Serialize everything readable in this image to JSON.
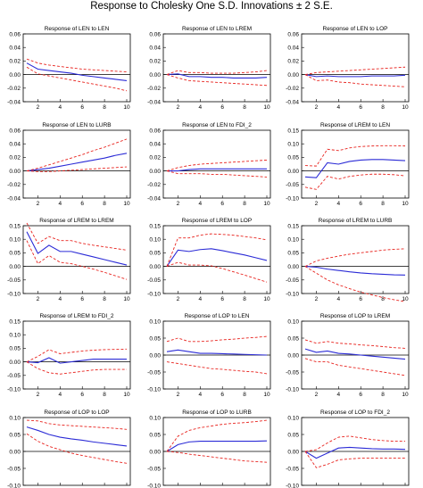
{
  "title": "Response to Cholesky One S.D. Innovations ± 2 S.E.",
  "colors": {
    "response": "#2b2bd6",
    "band": "#e8231e",
    "zero": "#000000",
    "frame": "#000000"
  },
  "chart_data": [
    {
      "type": "line",
      "title": "Response of LEN to LEN",
      "x": [
        1,
        2,
        3,
        4,
        5,
        6,
        7,
        8,
        9,
        10
      ],
      "ylim": [
        -0.04,
        0.06
      ],
      "yticks": [
        "0.06",
        "0.04",
        "0.02",
        "0.00",
        "-0.02",
        "-0.04"
      ],
      "xticks": [
        "2",
        "4",
        "6",
        "8",
        "10"
      ],
      "series": [
        {
          "role": "response",
          "values": [
            0.017,
            0.008,
            0.006,
            0.004,
            0.002,
            -0.001,
            -0.003,
            -0.005,
            -0.007,
            -0.009
          ]
        },
        {
          "role": "upper",
          "values": [
            0.023,
            0.017,
            0.014,
            0.012,
            0.01,
            0.008,
            0.007,
            0.006,
            0.005,
            0.004
          ]
        },
        {
          "role": "lower",
          "values": [
            0.011,
            0.001,
            -0.002,
            -0.005,
            -0.008,
            -0.011,
            -0.014,
            -0.017,
            -0.02,
            -0.024
          ]
        }
      ]
    },
    {
      "type": "line",
      "title": "Response of LEN to LREM",
      "x": [
        1,
        2,
        3,
        4,
        5,
        6,
        7,
        8,
        9,
        10
      ],
      "ylim": [
        -0.04,
        0.06
      ],
      "yticks": [
        "0.06",
        "0.04",
        "0.02",
        "0.00",
        "-0.02",
        "-0.04"
      ],
      "xticks": [
        "2",
        "4",
        "6",
        "8",
        "10"
      ],
      "series": [
        {
          "role": "response",
          "values": [
            0.0,
            0.001,
            -0.003,
            -0.003,
            -0.004,
            -0.004,
            -0.005,
            -0.005,
            -0.005,
            -0.004
          ]
        },
        {
          "role": "upper",
          "values": [
            0.0,
            0.006,
            0.003,
            0.003,
            0.002,
            0.002,
            0.002,
            0.003,
            0.004,
            0.006
          ]
        },
        {
          "role": "lower",
          "values": [
            0.0,
            -0.005,
            -0.009,
            -0.01,
            -0.011,
            -0.012,
            -0.013,
            -0.014,
            -0.015,
            -0.016
          ]
        }
      ]
    },
    {
      "type": "line",
      "title": "Response of LEN to LOP",
      "x": [
        1,
        2,
        3,
        4,
        5,
        6,
        7,
        8,
        9,
        10
      ],
      "ylim": [
        -0.04,
        0.06
      ],
      "yticks": [
        "0.06",
        "0.04",
        "0.02",
        "0.00",
        "-0.02",
        "-0.04"
      ],
      "xticks": [
        "2",
        "4",
        "6",
        "8",
        "10"
      ],
      "series": [
        {
          "role": "response",
          "values": [
            0.0,
            -0.003,
            -0.002,
            -0.003,
            -0.003,
            -0.003,
            -0.002,
            -0.002,
            -0.002,
            -0.001
          ]
        },
        {
          "role": "upper",
          "values": [
            0.0,
            0.003,
            0.004,
            0.005,
            0.006,
            0.007,
            0.008,
            0.009,
            0.01,
            0.011
          ]
        },
        {
          "role": "lower",
          "values": [
            0.0,
            -0.009,
            -0.008,
            -0.011,
            -0.012,
            -0.014,
            -0.015,
            -0.016,
            -0.017,
            -0.018
          ]
        }
      ]
    },
    {
      "type": "line",
      "title": "Response of LEN to LURB",
      "x": [
        1,
        2,
        3,
        4,
        5,
        6,
        7,
        8,
        9,
        10
      ],
      "ylim": [
        -0.04,
        0.06
      ],
      "yticks": [
        "0.06",
        "0.04",
        "0.02",
        "0.00",
        "-0.02",
        "-0.04"
      ],
      "xticks": [
        "2",
        "4",
        "6",
        "8",
        "10"
      ],
      "series": [
        {
          "role": "response",
          "values": [
            0.0,
            0.002,
            0.004,
            0.007,
            0.01,
            0.013,
            0.016,
            0.019,
            0.023,
            0.026
          ]
        },
        {
          "role": "upper",
          "values": [
            0.0,
            0.004,
            0.009,
            0.014,
            0.019,
            0.024,
            0.03,
            0.035,
            0.041,
            0.047
          ]
        },
        {
          "role": "lower",
          "values": [
            0.0,
            -0.001,
            -0.001,
            0.0,
            0.001,
            0.002,
            0.003,
            0.004,
            0.005,
            0.006
          ]
        }
      ]
    },
    {
      "type": "line",
      "title": "Response of LEN to FDI_2",
      "x": [
        1,
        2,
        3,
        4,
        5,
        6,
        7,
        8,
        9,
        10
      ],
      "ylim": [
        -0.04,
        0.06
      ],
      "yticks": [
        "0.06",
        "0.04",
        "0.02",
        "0.00",
        "-0.02",
        "-0.04"
      ],
      "xticks": [
        "2",
        "4",
        "6",
        "8",
        "10"
      ],
      "series": [
        {
          "role": "response",
          "values": [
            0.0,
            0.0,
            0.002,
            0.003,
            0.003,
            0.003,
            0.003,
            0.003,
            0.003,
            0.003
          ]
        },
        {
          "role": "upper",
          "values": [
            0.0,
            0.005,
            0.008,
            0.01,
            0.011,
            0.012,
            0.013,
            0.014,
            0.015,
            0.016
          ]
        },
        {
          "role": "lower",
          "values": [
            0.0,
            -0.004,
            -0.004,
            -0.004,
            -0.005,
            -0.005,
            -0.006,
            -0.007,
            -0.008,
            -0.009
          ]
        }
      ]
    },
    {
      "type": "line",
      "title": "Response of LREM to LEN",
      "x": [
        1,
        2,
        3,
        4,
        5,
        6,
        7,
        8,
        9,
        10
      ],
      "ylim": [
        -0.1,
        0.15
      ],
      "yticks": [
        "0.15",
        "0.10",
        "0.05",
        "0.00",
        "-0.05",
        "-0.10"
      ],
      "xticks": [
        "2",
        "4",
        "6",
        "8",
        "10"
      ],
      "series": [
        {
          "role": "response",
          "values": [
            -0.022,
            -0.025,
            0.03,
            0.025,
            0.035,
            0.04,
            0.042,
            0.042,
            0.04,
            0.038
          ]
        },
        {
          "role": "upper",
          "values": [
            0.02,
            0.018,
            0.08,
            0.075,
            0.085,
            0.09,
            0.092,
            0.093,
            0.093,
            0.092
          ]
        },
        {
          "role": "lower",
          "values": [
            -0.06,
            -0.068,
            -0.02,
            -0.03,
            -0.02,
            -0.015,
            -0.012,
            -0.012,
            -0.014,
            -0.018
          ]
        }
      ]
    },
    {
      "type": "line",
      "title": "Response of LREM to LREM",
      "x": [
        1,
        2,
        3,
        4,
        5,
        6,
        7,
        8,
        9,
        10
      ],
      "ylim": [
        -0.1,
        0.15
      ],
      "yticks": [
        "0.15",
        "0.10",
        "0.05",
        "0.00",
        "-0.05",
        "-0.10"
      ],
      "xticks": [
        "2",
        "4",
        "6",
        "8",
        "10"
      ],
      "series": [
        {
          "role": "response",
          "values": [
            0.128,
            0.048,
            0.078,
            0.055,
            0.055,
            0.045,
            0.035,
            0.025,
            0.015,
            0.005
          ]
        },
        {
          "role": "upper",
          "values": [
            0.16,
            0.085,
            0.11,
            0.095,
            0.095,
            0.085,
            0.078,
            0.072,
            0.066,
            0.06
          ]
        },
        {
          "role": "lower",
          "values": [
            0.095,
            0.01,
            0.04,
            0.015,
            0.01,
            0.0,
            -0.01,
            -0.022,
            -0.035,
            -0.048
          ]
        }
      ]
    },
    {
      "type": "line",
      "title": "Response of LREM to LOP",
      "x": [
        1,
        2,
        3,
        4,
        5,
        6,
        7,
        8,
        9,
        10
      ],
      "ylim": [
        -0.1,
        0.15
      ],
      "yticks": [
        "0.15",
        "0.10",
        "0.05",
        "0.00",
        "-0.05",
        "-0.10"
      ],
      "xticks": [
        "2",
        "4",
        "6",
        "8",
        "10"
      ],
      "series": [
        {
          "role": "response",
          "values": [
            0.0,
            0.06,
            0.055,
            0.062,
            0.065,
            0.058,
            0.05,
            0.042,
            0.032,
            0.022
          ]
        },
        {
          "role": "upper",
          "values": [
            0.0,
            0.105,
            0.105,
            0.115,
            0.12,
            0.118,
            0.115,
            0.11,
            0.105,
            0.098
          ]
        },
        {
          "role": "lower",
          "values": [
            0.0,
            0.015,
            0.005,
            0.005,
            0.002,
            -0.008,
            -0.02,
            -0.032,
            -0.045,
            -0.058
          ]
        }
      ]
    },
    {
      "type": "line",
      "title": "Response of LREM to LURB",
      "x": [
        1,
        2,
        3,
        4,
        5,
        6,
        7,
        8,
        9,
        10
      ],
      "ylim": [
        -0.1,
        0.15
      ],
      "yticks": [
        "0.15",
        "0.10",
        "0.05",
        "0.00",
        "-0.05",
        "-0.10"
      ],
      "xticks": [
        "2",
        "4",
        "6",
        "8",
        "10"
      ],
      "series": [
        {
          "role": "response",
          "values": [
            0.0,
            -0.003,
            -0.01,
            -0.015,
            -0.02,
            -0.024,
            -0.027,
            -0.029,
            -0.031,
            -0.032
          ]
        },
        {
          "role": "upper",
          "values": [
            0.0,
            0.02,
            0.03,
            0.038,
            0.045,
            0.05,
            0.055,
            0.06,
            0.063,
            0.065
          ]
        },
        {
          "role": "lower",
          "values": [
            0.0,
            -0.025,
            -0.05,
            -0.068,
            -0.082,
            -0.095,
            -0.105,
            -0.115,
            -0.123,
            -0.13
          ]
        }
      ]
    },
    {
      "type": "line",
      "title": "Response of LREM to FDI_2",
      "x": [
        1,
        2,
        3,
        4,
        5,
        6,
        7,
        8,
        9,
        10
      ],
      "ylim": [
        -0.1,
        0.15
      ],
      "yticks": [
        "0.15",
        "0.10",
        "0.05",
        "0.00",
        "-0.05",
        "-0.10"
      ],
      "xticks": [
        "2",
        "4",
        "6",
        "8",
        "10"
      ],
      "series": [
        {
          "role": "response",
          "values": [
            0.0,
            -0.003,
            0.015,
            -0.005,
            0.0,
            0.005,
            0.01,
            0.01,
            0.01,
            0.01
          ]
        },
        {
          "role": "upper",
          "values": [
            0.0,
            0.02,
            0.045,
            0.03,
            0.035,
            0.04,
            0.043,
            0.045,
            0.046,
            0.047
          ]
        },
        {
          "role": "lower",
          "values": [
            0.0,
            -0.025,
            -0.04,
            -0.045,
            -0.04,
            -0.035,
            -0.03,
            -0.028,
            -0.028,
            -0.028
          ]
        }
      ]
    },
    {
      "type": "line",
      "title": "Response of LOP to LEN",
      "x": [
        1,
        2,
        3,
        4,
        5,
        6,
        7,
        8,
        9,
        10
      ],
      "ylim": [
        -0.1,
        0.1
      ],
      "yticks": [
        "0.10",
        "0.05",
        "0.00",
        "-0.05",
        "-0.10"
      ],
      "xticks": [
        "2",
        "4",
        "6",
        "8",
        "10"
      ],
      "series": [
        {
          "role": "response",
          "values": [
            0.01,
            0.015,
            0.01,
            0.005,
            0.005,
            0.004,
            0.003,
            0.002,
            0.001,
            0.0
          ]
        },
        {
          "role": "upper",
          "values": [
            0.04,
            0.05,
            0.04,
            0.04,
            0.042,
            0.045,
            0.047,
            0.05,
            0.052,
            0.055
          ]
        },
        {
          "role": "lower",
          "values": [
            -0.02,
            -0.025,
            -0.03,
            -0.035,
            -0.04,
            -0.042,
            -0.045,
            -0.048,
            -0.05,
            -0.055
          ]
        }
      ]
    },
    {
      "type": "line",
      "title": "Response of LOP to LREM",
      "x": [
        1,
        2,
        3,
        4,
        5,
        6,
        7,
        8,
        9,
        10
      ],
      "ylim": [
        -0.1,
        0.1
      ],
      "yticks": [
        "0.10",
        "0.05",
        "0.00",
        "-0.05",
        "-0.10"
      ],
      "xticks": [
        "2",
        "4",
        "6",
        "8",
        "10"
      ],
      "series": [
        {
          "role": "response",
          "values": [
            0.018,
            0.008,
            0.012,
            0.005,
            0.003,
            0.0,
            -0.003,
            -0.006,
            -0.009,
            -0.012
          ]
        },
        {
          "role": "upper",
          "values": [
            0.045,
            0.035,
            0.04,
            0.035,
            0.033,
            0.03,
            0.028,
            0.025,
            0.022,
            0.02
          ]
        },
        {
          "role": "lower",
          "values": [
            -0.01,
            -0.02,
            -0.02,
            -0.03,
            -0.035,
            -0.04,
            -0.045,
            -0.05,
            -0.055,
            -0.06
          ]
        }
      ]
    },
    {
      "type": "line",
      "title": "Response of LOP to LOP",
      "x": [
        1,
        2,
        3,
        4,
        5,
        6,
        7,
        8,
        9,
        10
      ],
      "ylim": [
        -0.1,
        0.1
      ],
      "yticks": [
        "0.10",
        "0.05",
        "0.00",
        "-0.05",
        "-0.10"
      ],
      "xticks": [
        "2",
        "4",
        "6",
        "8",
        "10"
      ],
      "series": [
        {
          "role": "response",
          "values": [
            0.072,
            0.062,
            0.05,
            0.042,
            0.037,
            0.033,
            0.028,
            0.024,
            0.02,
            0.016
          ]
        },
        {
          "role": "upper",
          "values": [
            0.092,
            0.09,
            0.082,
            0.078,
            0.076,
            0.074,
            0.072,
            0.07,
            0.068,
            0.065
          ]
        },
        {
          "role": "lower",
          "values": [
            0.052,
            0.03,
            0.015,
            0.005,
            -0.005,
            -0.012,
            -0.018,
            -0.024,
            -0.03,
            -0.035
          ]
        }
      ]
    },
    {
      "type": "line",
      "title": "Response of LOP to LURB",
      "x": [
        1,
        2,
        3,
        4,
        5,
        6,
        7,
        8,
        9,
        10
      ],
      "ylim": [
        -0.1,
        0.1
      ],
      "yticks": [
        "0.10",
        "0.05",
        "0.00",
        "-0.05",
        "-0.10"
      ],
      "xticks": [
        "2",
        "4",
        "6",
        "8",
        "10"
      ],
      "series": [
        {
          "role": "response",
          "values": [
            0.0,
            0.02,
            0.028,
            0.03,
            0.03,
            0.03,
            0.03,
            0.03,
            0.03,
            0.031
          ]
        },
        {
          "role": "upper",
          "values": [
            0.0,
            0.045,
            0.062,
            0.07,
            0.075,
            0.08,
            0.083,
            0.085,
            0.088,
            0.092
          ]
        },
        {
          "role": "lower",
          "values": [
            0.0,
            -0.003,
            -0.008,
            -0.012,
            -0.016,
            -0.02,
            -0.024,
            -0.028,
            -0.03,
            -0.032
          ]
        }
      ]
    },
    {
      "type": "line",
      "title": "Response of LOP to FDI_2",
      "x": [
        1,
        2,
        3,
        4,
        5,
        6,
        7,
        8,
        9,
        10
      ],
      "ylim": [
        -0.1,
        0.1
      ],
      "yticks": [
        "0.10",
        "0.05",
        "0.00",
        "-0.05",
        "-0.10"
      ],
      "xticks": [
        "2",
        "4",
        "6",
        "8",
        "10"
      ],
      "series": [
        {
          "role": "response",
          "values": [
            0.0,
            -0.02,
            -0.005,
            0.01,
            0.012,
            0.01,
            0.008,
            0.007,
            0.007,
            0.006
          ]
        },
        {
          "role": "upper",
          "values": [
            0.0,
            0.005,
            0.025,
            0.042,
            0.045,
            0.04,
            0.035,
            0.032,
            0.03,
            0.03
          ]
        },
        {
          "role": "lower",
          "values": [
            0.0,
            -0.048,
            -0.038,
            -0.025,
            -0.022,
            -0.02,
            -0.02,
            -0.02,
            -0.02,
            -0.02
          ]
        }
      ]
    }
  ]
}
